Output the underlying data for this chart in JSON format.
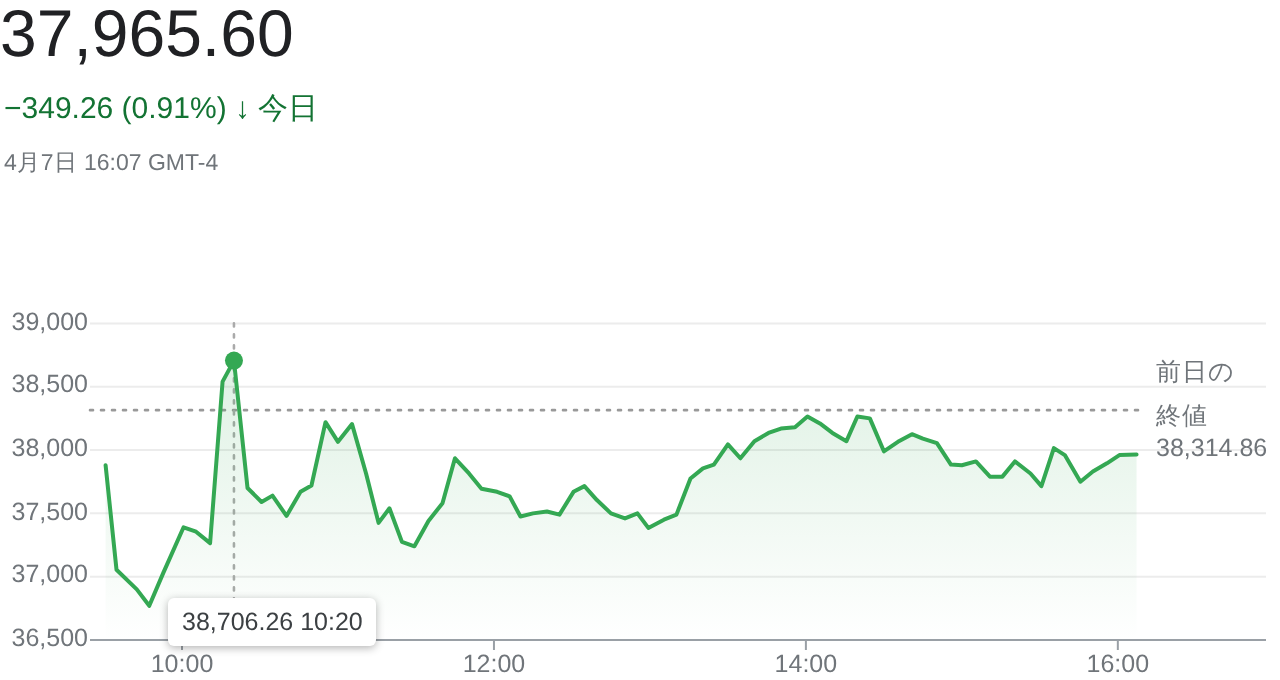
{
  "chart_data": {
    "type": "area",
    "title": "37,965.60",
    "subtitle": "−349.26 (0.91%) ↓ 今日",
    "annotations": [
      "4月7日 16:07 GMT-4",
      "38,314.86",
      "38,706.26 10:20"
    ],
    "x": [
      9.51,
      9.58,
      9.71,
      9.79,
      9.88,
      10.01,
      10.09,
      10.18,
      10.26,
      10.333,
      10.42,
      10.51,
      10.58,
      10.67,
      10.76,
      10.83,
      10.92,
      11.0,
      11.09,
      11.18,
      11.26,
      11.33,
      11.41,
      11.49,
      11.58,
      11.67,
      11.75,
      11.84,
      11.92,
      12.02,
      12.1,
      12.17,
      12.25,
      12.34,
      12.42,
      12.51,
      12.58,
      12.66,
      12.75,
      12.84,
      12.92,
      12.99,
      13.09,
      13.17,
      13.26,
      13.34,
      13.41,
      13.5,
      13.58,
      13.67,
      13.76,
      13.84,
      13.93,
      14.01,
      14.09,
      14.17,
      14.26,
      14.33,
      14.41,
      14.5,
      14.59,
      14.68,
      14.75,
      14.84,
      14.93,
      15.0,
      15.09,
      15.18,
      15.26,
      15.34,
      15.44,
      15.51,
      15.59,
      15.66,
      15.76,
      15.84,
      15.93,
      16.01,
      16.12
    ],
    "series": [
      {
        "color": "#34a853",
        "values": [
          37880,
          37055,
          36900,
          36770,
          37030,
          37390,
          37355,
          37265,
          38540,
          38706.26,
          37700,
          37590,
          37640,
          37480,
          37670,
          37720,
          38220,
          38065,
          38205,
          37815,
          37425,
          37540,
          37275,
          37240,
          37440,
          37580,
          37935,
          37815,
          37695,
          37670,
          37635,
          37475,
          37500,
          37515,
          37490,
          37670,
          37715,
          37605,
          37500,
          37460,
          37500,
          37385,
          37450,
          37490,
          37775,
          37855,
          37885,
          38045,
          37935,
          38070,
          38135,
          38170,
          38180,
          38265,
          38210,
          38135,
          38070,
          38265,
          38250,
          37990,
          38065,
          38125,
          38090,
          38055,
          37885,
          37880,
          37910,
          37790,
          37790,
          37910,
          37815,
          37715,
          38015,
          37960,
          37750,
          37830,
          37895,
          37960,
          37965.6
        ]
      },
      {
        "type": "scatter",
        "color": "#34a853",
        "x": [
          10.333
        ],
        "values": [
          38706.26
        ],
        "marker": "circle"
      }
    ],
    "xlim": [
      9.41,
      16.95
    ],
    "ylim": [
      36500,
      39000
    ],
    "xticks": [
      {
        "value": 10,
        "label": "10:00"
      },
      {
        "value": 12,
        "label": "12:00"
      },
      {
        "value": 14,
        "label": "14:00"
      },
      {
        "value": 16,
        "label": "16:00"
      }
    ],
    "yticks": [
      {
        "value": 36500,
        "label": "36,500"
      },
      {
        "value": 37000,
        "label": "37,000"
      },
      {
        "value": 37500,
        "label": "37,500"
      },
      {
        "value": 38000,
        "label": "38,000"
      },
      {
        "value": 38500,
        "label": "38,500"
      },
      {
        "value": 39000,
        "label": "39,000"
      }
    ],
    "grid": "y",
    "ref_lines": [
      {
        "axis": "y",
        "value": 38314.86,
        "label": "前日の終値",
        "line_style": "dotted",
        "color": "#999999"
      },
      {
        "axis": "x",
        "value": 10.333,
        "line_style": "dotted",
        "color": "#aaaaaa"
      }
    ]
  }
}
